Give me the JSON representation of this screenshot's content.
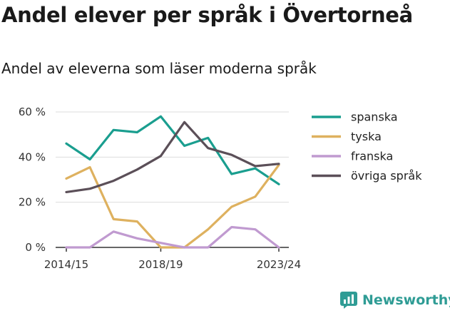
{
  "title": "Andel elever per språk i Övertorneå",
  "subtitle": "Andel av eleverna som läser moderna språk",
  "brand": {
    "name": "Newsworthy",
    "icon": "newsworthy-logo-icon",
    "color": "#2f9c95"
  },
  "chart_data": {
    "type": "line",
    "x": [
      "2014/15",
      "2015/16",
      "2016/17",
      "2017/18",
      "2018/19",
      "2019/20",
      "2020/21",
      "2021/22",
      "2022/23",
      "2023/24"
    ],
    "x_tick_labels": [
      "2014/15",
      "2018/19",
      "2023/24"
    ],
    "y_tick_labels": [
      "0 %",
      "20 %",
      "40 %",
      "60 %"
    ],
    "ylim": [
      0,
      60
    ],
    "yticks": [
      0,
      20,
      40,
      60
    ],
    "grid": true,
    "legend_position": "right",
    "series": [
      {
        "name": "spanska",
        "color": "#1a9e8f",
        "values": [
          46,
          39,
          52,
          51,
          58,
          45,
          48.5,
          32.5,
          35,
          28
        ]
      },
      {
        "name": "tyska",
        "color": "#deb15f",
        "values": [
          30.5,
          35.5,
          12.5,
          11.5,
          0,
          0,
          8,
          18,
          22.5,
          36.5
        ]
      },
      {
        "name": "franska",
        "color": "#c09ad0",
        "values": [
          0,
          0,
          7,
          4,
          2,
          0,
          0,
          9,
          8,
          0
        ]
      },
      {
        "name": "övriga språk",
        "color": "#5b4f58",
        "values": [
          24.5,
          26,
          29.5,
          34.5,
          40.5,
          55.5,
          44,
          41,
          36,
          37
        ]
      }
    ]
  }
}
